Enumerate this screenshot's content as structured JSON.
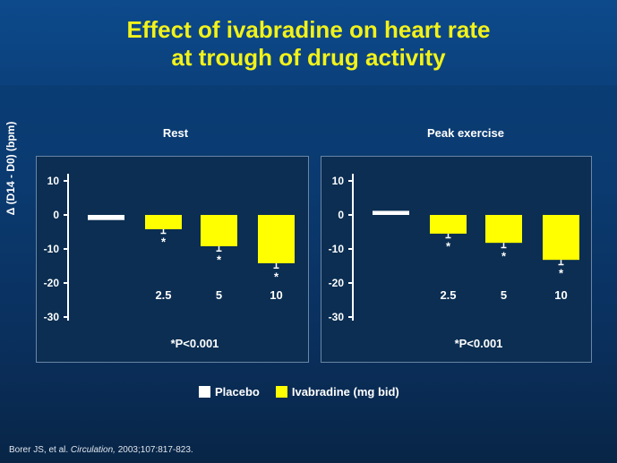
{
  "title_line1": "Effect of ivabradine on heart rate",
  "title_line2": "at trough of drug activity",
  "ylabel": "Δ (D14 - D0) (bpm)",
  "legend": [
    {
      "label": "Placebo",
      "color": "#ffffff"
    },
    {
      "label": "Ivabradine (mg bid)",
      "color": "#ffff00"
    }
  ],
  "citation": {
    "authors": "Borer JS, et al.",
    "journal": "Circulation,",
    "ref": "2003;107:817-823."
  },
  "colors": {
    "placebo": "#ffffff",
    "ivabradine": "#ffff00",
    "panel": "#0b2e52"
  },
  "chart_data": [
    {
      "type": "bar",
      "title": "Rest",
      "categories": [
        "",
        "2.5",
        "5",
        "10"
      ],
      "values": [
        -1.5,
        -4.2,
        -9.2,
        -14.2
      ],
      "errors": [
        0,
        1.2,
        1.4,
        1.4
      ],
      "significance": [
        "",
        "*",
        "*",
        "*"
      ],
      "yticks": [
        10,
        0,
        -10,
        -20,
        -30
      ],
      "ylim": [
        -30,
        10
      ],
      "footnote": "*P<0.001"
    },
    {
      "type": "bar",
      "title": "Peak exercise",
      "categories": [
        "",
        "2.5",
        "5",
        "10"
      ],
      "values": [
        1.2,
        -5.5,
        -8.2,
        -13.2
      ],
      "errors": [
        0,
        1.2,
        1.4,
        1.4
      ],
      "significance": [
        "",
        "*",
        "*",
        "*"
      ],
      "yticks": [
        10,
        0,
        -10,
        -20,
        -30
      ],
      "ylim": [
        -30,
        10
      ],
      "footnote": "*P<0.001"
    }
  ]
}
